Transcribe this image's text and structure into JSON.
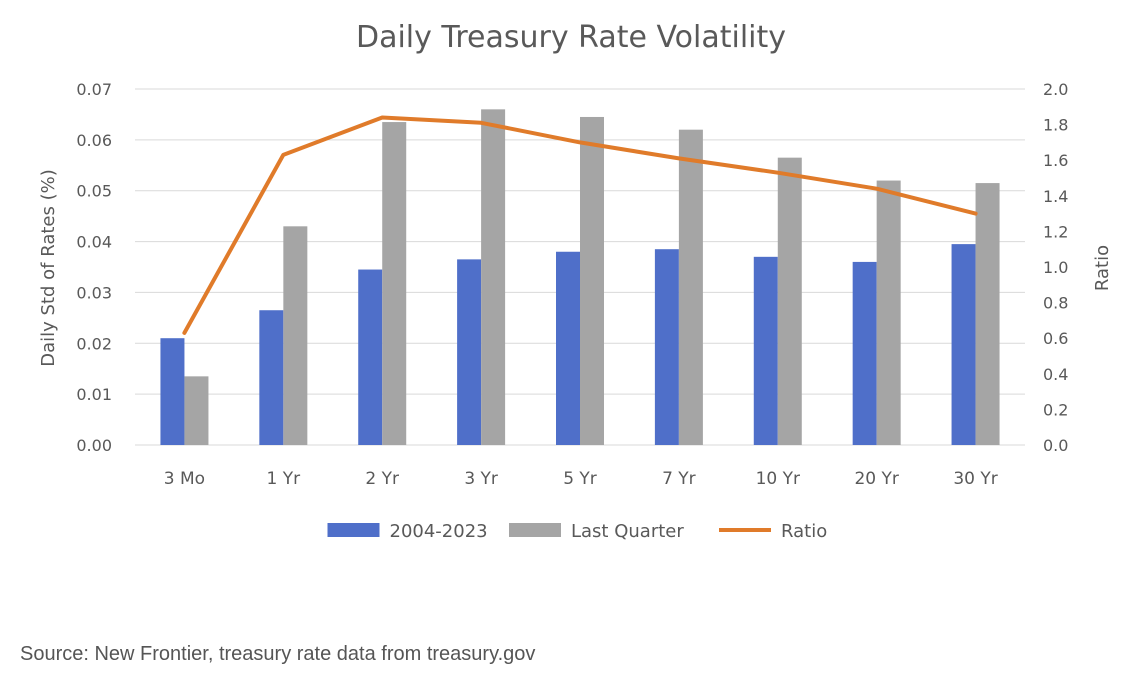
{
  "chart_data": {
    "type": "bar",
    "title": "Daily Treasury Rate Volatility",
    "ylabel": "Daily Std of Rates (%)",
    "y2label": "Ratio",
    "categories": [
      "3 Mo",
      "1 Yr",
      "2 Yr",
      "3 Yr",
      "5 Yr",
      "7 Yr",
      "10 Yr",
      "20 Yr",
      "30 Yr"
    ],
    "ylim": [
      0,
      0.07
    ],
    "y_ticks": [
      "0.00",
      "0.01",
      "0.02",
      "0.03",
      "0.04",
      "0.05",
      "0.06",
      "0.07"
    ],
    "y2lim": [
      0,
      2.0
    ],
    "y2_ticks": [
      "0.0",
      "0.2",
      "0.4",
      "0.6",
      "0.8",
      "1.0",
      "1.2",
      "1.4",
      "1.6",
      "1.8",
      "2.0"
    ],
    "grid": true,
    "legend_position": "bottom",
    "series": [
      {
        "name": "2004-2023",
        "kind": "bar",
        "axis": "left",
        "color": "#4f6fc9",
        "values": [
          0.021,
          0.0265,
          0.0345,
          0.0365,
          0.038,
          0.0385,
          0.037,
          0.036,
          0.0395
        ]
      },
      {
        "name": "Last Quarter",
        "kind": "bar",
        "axis": "left",
        "color": "#a5a5a5",
        "values": [
          0.0135,
          0.043,
          0.0635,
          0.066,
          0.0645,
          0.062,
          0.0565,
          0.052,
          0.0515
        ]
      },
      {
        "name": "Ratio",
        "kind": "line",
        "axis": "right",
        "color": "#e07b2a",
        "values": [
          0.63,
          1.63,
          1.84,
          1.81,
          1.7,
          1.61,
          1.53,
          1.44,
          1.3
        ]
      }
    ]
  },
  "footer": {
    "source": "Source: New Frontier, treasury rate data from treasury.gov"
  }
}
